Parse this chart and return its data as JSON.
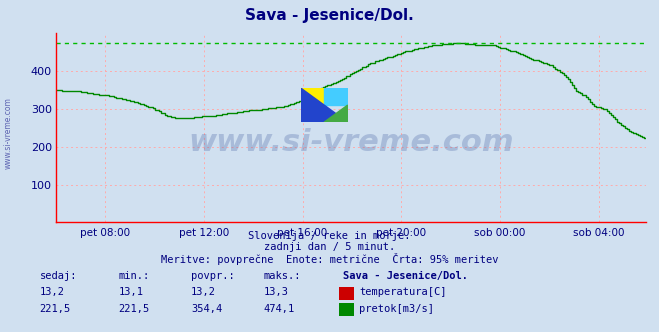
{
  "title": "Sava - Jesenice/Dol.",
  "title_color": "#000080",
  "bg_color": "#d0e0f0",
  "plot_bg_color": "#d0e0f0",
  "line_color": "#008800",
  "max_line_color": "#00bb00",
  "axis_color": "#ff0000",
  "grid_color": "#ffaaaa",
  "ylabel_color": "#000080",
  "xlabel_color": "#000080",
  "ylim": [
    0,
    500
  ],
  "yticks": [
    100,
    200,
    300,
    400
  ],
  "max_value": 474.1,
  "watermark": "www.si-vreme.com",
  "watermark_color": "#1a3a8a",
  "watermark_alpha": 0.22,
  "subtitle1": "Slovenija / reke in morje.",
  "subtitle2": "zadnji dan / 5 minut.",
  "subtitle3": "Meritve: povprečne  Enote: metrične  Črta: 95% meritev",
  "subtitle_color": "#000080",
  "table_headers": [
    "sedaj:",
    "min.:",
    "povpr.:",
    "maks.:",
    "Sava - Jesenice/Dol."
  ],
  "table_row1": [
    "13,2",
    "13,1",
    "13,2",
    "13,3"
  ],
  "table_row2": [
    "221,5",
    "221,5",
    "354,4",
    "474,1"
  ],
  "legend_items": [
    "temperatura[C]",
    "pretok[m3/s]"
  ],
  "legend_colors": [
    "#cc0000",
    "#008800"
  ],
  "xtick_labels": [
    "pet 08:00",
    "pet 12:00",
    "pet 16:00",
    "pet 20:00",
    "sob 00:00",
    "sob 04:00"
  ],
  "xtick_positions": [
    24,
    72,
    120,
    168,
    216,
    264
  ],
  "n_points": 288,
  "side_label": "www.si-vreme.com",
  "side_label_color": "#000080",
  "flow_keypoints_t": [
    0.0,
    0.04,
    0.09,
    0.13,
    0.16,
    0.19,
    0.21,
    0.24,
    0.28,
    0.31,
    0.34,
    0.37,
    0.39,
    0.42,
    0.44,
    0.46,
    0.48,
    0.5,
    0.52,
    0.54,
    0.56,
    0.58,
    0.6,
    0.62,
    0.64,
    0.66,
    0.68,
    0.7,
    0.72,
    0.74,
    0.76,
    0.78,
    0.8,
    0.82,
    0.84,
    0.86,
    0.87,
    0.88,
    0.89,
    0.9,
    0.91,
    0.92,
    0.93,
    0.94,
    0.95,
    0.96,
    0.97,
    0.98,
    0.99,
    1.0
  ],
  "flow_keypoints_v": [
    350,
    345,
    335,
    320,
    305,
    280,
    275,
    278,
    285,
    292,
    298,
    303,
    308,
    325,
    348,
    362,
    375,
    393,
    410,
    425,
    435,
    445,
    455,
    462,
    468,
    472,
    474,
    472,
    470,
    468,
    460,
    450,
    435,
    425,
    415,
    390,
    375,
    348,
    340,
    332,
    310,
    303,
    300,
    285,
    268,
    255,
    245,
    235,
    228,
    222
  ]
}
